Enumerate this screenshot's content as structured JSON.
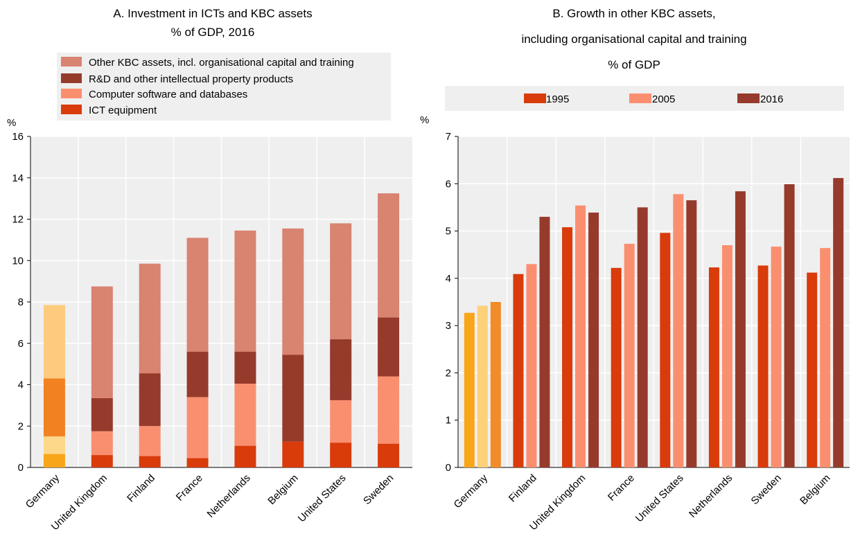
{
  "chart_data": [
    {
      "type": "bar",
      "stacked": true,
      "title": "A. Investment in ICTs and KBC assets",
      "subtitle": "% of GDP, 2016",
      "ylabel": "%",
      "ylim": [
        0,
        16
      ],
      "yticks": [
        "0",
        "2",
        "4",
        "6",
        "8",
        "10",
        "12",
        "14",
        "16"
      ],
      "grid": true,
      "legend": "top",
      "categories": [
        "Germany",
        "United Kingdom",
        "Finland",
        "France",
        "Netherlands",
        "Belgium",
        "United States",
        "Sweden"
      ],
      "highlight_category": "Germany",
      "series": [
        {
          "name": "ICT equipment",
          "values": [
            0.65,
            0.6,
            0.55,
            0.45,
            1.05,
            1.25,
            1.2,
            1.15
          ],
          "color": "#d93b0b",
          "highlight_color": "#f9a51a"
        },
        {
          "name": "Computer software and databases",
          "values": [
            0.85,
            1.15,
            1.45,
            2.95,
            3.0,
            0.0,
            2.05,
            3.25
          ],
          "color": "#fa8f70",
          "highlight_color": "#fdd78a"
        },
        {
          "name": "R&D and other intellectual property products",
          "values": [
            2.8,
            1.6,
            2.55,
            2.2,
            1.55,
            4.2,
            2.95,
            2.85
          ],
          "color": "#963a2c",
          "highlight_color": "#f28121"
        },
        {
          "name": "Other KBC assets, incl. organisational capital and training",
          "values": [
            3.55,
            5.4,
            5.3,
            5.5,
            5.85,
            6.1,
            5.6,
            6.0
          ],
          "color": "#d98371",
          "highlight_color": "#fdcb7d"
        }
      ]
    },
    {
      "type": "bar",
      "title": "B. Growth in other KBC assets,",
      "subtitle": "including organisational capital and training",
      "subtitle2": "% of GDP",
      "ylabel": "%",
      "ylim": [
        0,
        7
      ],
      "yticks": [
        "0",
        "1",
        "2",
        "3",
        "4",
        "5",
        "6",
        "7"
      ],
      "grid": true,
      "legend": "top",
      "categories": [
        "Germany",
        "Finland",
        "United Kingdom",
        "France",
        "United States",
        "Netherlands",
        "Sweden",
        "Belgium"
      ],
      "highlight_category": "Germany",
      "series": [
        {
          "name": "1995",
          "values": [
            3.27,
            4.09,
            5.08,
            4.22,
            4.96,
            4.23,
            4.27,
            4.12
          ],
          "color": "#d93b0b",
          "highlight_color": "#f9a51a"
        },
        {
          "name": "2005",
          "values": [
            3.42,
            4.3,
            5.54,
            4.73,
            5.78,
            4.7,
            4.67,
            4.64
          ],
          "color": "#fa8f70",
          "highlight_color": "#fdd07a"
        },
        {
          "name": "2016",
          "values": [
            3.5,
            5.3,
            5.39,
            5.5,
            5.65,
            5.84,
            5.99,
            6.12
          ],
          "color": "#963a2c",
          "highlight_color": "#f28c28"
        }
      ]
    }
  ]
}
